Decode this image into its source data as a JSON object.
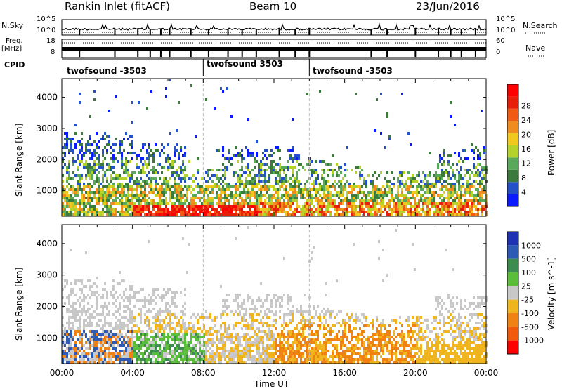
{
  "header": {
    "title": "Rankin Inlet (fitACF)",
    "beam": "Beam 10",
    "date": "23/Jun/2016"
  },
  "top_panels": {
    "nsky_label": "N.Sky",
    "nsky_ticks": [
      "10^5",
      "10^0"
    ],
    "nsearch_label": "N.Search",
    "nsearch_ticks": [
      "10^5",
      "10^0"
    ],
    "freq_label_top": "Freq.",
    "freq_label_unit": "[MHz]",
    "freq_ticks": [
      "18",
      "8"
    ],
    "nave_label": "Nave",
    "nave_ticks": [
      "60",
      "0"
    ],
    "cpid_label": "CPID",
    "cpid_segments": [
      {
        "label": "twofsound -3503",
        "start_hour": 0
      },
      {
        "label": "twofsound 3503",
        "start_hour": 8
      },
      {
        "label": "twofsound -3503",
        "start_hour": 14
      }
    ]
  },
  "chart_data": [
    {
      "type": "heatmap",
      "name": "power-panel",
      "ylabel": "Slant Range [km]",
      "xlabel": "",
      "yticks": [
        1000,
        2000,
        3000,
        4000
      ],
      "ylim": [
        180,
        4600
      ],
      "xlim_hours": [
        0,
        24
      ],
      "colorbar": {
        "label": "Power [dB]",
        "ticks": [
          "4",
          "8",
          "12",
          "16",
          "20",
          "24",
          "28"
        ],
        "colors": [
          "#0a1cff",
          "#2450c8",
          "#3c7a3c",
          "#5aa85a",
          "#b4d22a",
          "#f0c81e",
          "#f08c1e",
          "#f05a14",
          "#e61e0a",
          "#ff0000"
        ]
      }
    },
    {
      "type": "heatmap",
      "name": "velocity-panel",
      "ylabel": "Slant Range [km]",
      "xlabel": "Time UT",
      "yticks": [
        1000,
        2000,
        3000,
        4000
      ],
      "ylim": [
        180,
        4600
      ],
      "xlim_hours": [
        0,
        24
      ],
      "xtick_labels": [
        "00:00",
        "04:00",
        "08:00",
        "12:00",
        "16:00",
        "20:00",
        "00:00"
      ],
      "colorbar": {
        "label": "Velocity [m s^-1]",
        "ticks": [
          "1000",
          "500",
          "100",
          "25",
          "-25",
          "-100",
          "-500",
          "-1000"
        ],
        "colors": [
          "#1e32b4",
          "#2d5ab4",
          "#3c8c50",
          "#5abe3c",
          "#c8c8c8",
          "#f0b41e",
          "#f08214",
          "#f05a0a",
          "#ff0000"
        ]
      }
    }
  ]
}
